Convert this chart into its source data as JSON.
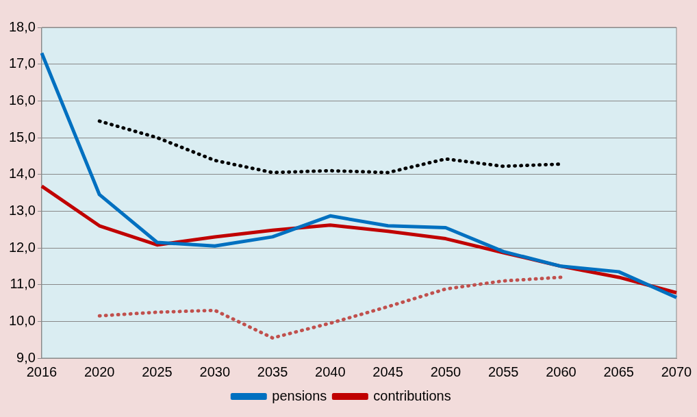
{
  "chart_data": {
    "type": "line",
    "categories": [
      "2016",
      "2020",
      "2025",
      "2030",
      "2035",
      "2040",
      "2045",
      "2050",
      "2055",
      "2060",
      "2065",
      "2070"
    ],
    "series": [
      {
        "name": "pensions",
        "color": "#0070c0",
        "line_style": "solid",
        "values": [
          17.3,
          13.45,
          12.15,
          12.05,
          12.3,
          12.87,
          12.6,
          12.55,
          11.9,
          11.5,
          11.35,
          10.65
        ]
      },
      {
        "name": "contributions",
        "color": "#c00000",
        "line_style": "solid",
        "values": [
          13.68,
          12.6,
          12.08,
          12.3,
          12.48,
          12.62,
          12.45,
          12.25,
          11.87,
          11.5,
          11.2,
          10.78
        ]
      },
      {
        "color": "#000000",
        "line_style": "dotted",
        "values": [
          null,
          15.45,
          15.0,
          14.38,
          14.05,
          14.1,
          14.05,
          14.42,
          14.22,
          14.28,
          null,
          null
        ]
      },
      {
        "color": "#c0504d",
        "line_style": "dotted",
        "values": [
          null,
          10.15,
          10.25,
          10.3,
          9.55,
          9.95,
          10.4,
          10.88,
          11.1,
          11.2,
          null,
          null
        ]
      }
    ],
    "ylim": [
      9,
      18
    ],
    "yticks": [
      {
        "value": 9,
        "label": "9,0"
      },
      {
        "value": 10,
        "label": "10,0"
      },
      {
        "value": 11,
        "label": "11,0"
      },
      {
        "value": 12,
        "label": "12,0"
      },
      {
        "value": 13,
        "label": "13,0"
      },
      {
        "value": 14,
        "label": "14,0"
      },
      {
        "value": 15,
        "label": "15,0"
      },
      {
        "value": 16,
        "label": "16,0"
      },
      {
        "value": 17,
        "label": "17,0"
      },
      {
        "value": 18,
        "label": "18,0"
      }
    ],
    "grid": "y",
    "legend": "bottom",
    "marker": "none"
  }
}
